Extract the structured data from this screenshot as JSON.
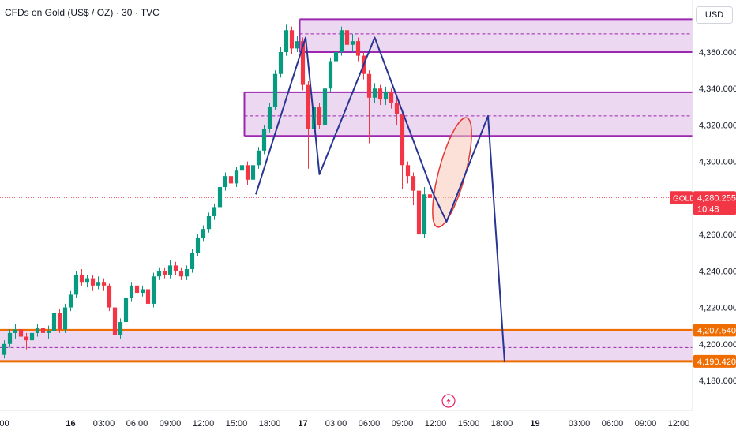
{
  "header": {
    "title": "CFDs on Gold (US$ / OZ) · 30 · TVC",
    "currency": "USD"
  },
  "colors": {
    "up": "#089981",
    "down": "#f23645",
    "zone_fill": "#e1bee7",
    "zone_border": "#9c27b0",
    "support_line": "#ef6c00",
    "pattern_line": "#283593",
    "price_line": "#f23645",
    "ellipse_fill": "#f8c8b8",
    "ellipse_stroke": "#e53935"
  },
  "chart_data": {
    "type": "candlestick",
    "symbol": "GOLD",
    "price_axis": {
      "min": 4170,
      "max": 4380,
      "ticks": [
        "4,180.000",
        "4,200.000",
        "4,220.000",
        "4,240.000",
        "4,260.000",
        "4,280.000",
        "4,300.000",
        "4,320.000",
        "4,340.000",
        "4,360.000"
      ],
      "tick_values": [
        4180,
        4200,
        4220,
        4240,
        4260,
        4280,
        4300,
        4320,
        4340,
        4360
      ]
    },
    "time_axis": {
      "labels": [
        "00",
        "16",
        "03:00",
        "06:00",
        "09:00",
        "12:00",
        "15:00",
        "18:00",
        "17",
        "03:00",
        "06:00",
        "09:00",
        "12:00",
        "15:00",
        "18:00",
        "19",
        "03:00",
        "06:00",
        "09:00",
        "12:00"
      ],
      "label_bars": [
        0,
        12,
        18,
        24,
        30,
        36,
        42,
        48,
        54,
        60,
        66,
        72,
        78,
        84,
        90,
        96,
        104,
        110,
        116,
        122
      ],
      "day_labels": [
        "16",
        "17",
        "19"
      ]
    },
    "last_price": {
      "label": "GOLD",
      "value": "4,280.255",
      "countdown": "10:48",
      "price": 4280.255
    },
    "zones": [
      {
        "name": "upper-resistance",
        "top": 4378,
        "bottom": 4360,
        "mid": 4370,
        "from_bar": 54
      },
      {
        "name": "middle-resistance",
        "top": 4338,
        "bottom": 4314,
        "mid": 4325,
        "from_bar": 44
      },
      {
        "name": "support",
        "top": 4207.54,
        "bottom": 4190.42,
        "mid": 4198,
        "from_bar": 0
      }
    ],
    "support_labels": [
      {
        "value": "4,207.540",
        "price": 4207.54
      },
      {
        "value": "4,190.420",
        "price": 4190.42
      }
    ],
    "pattern_points": [
      {
        "bar": 45.5,
        "price": 4282
      },
      {
        "bar": 54.5,
        "price": 4368
      },
      {
        "bar": 57,
        "price": 4293
      },
      {
        "bar": 67,
        "price": 4368
      },
      {
        "bar": 77.5,
        "price": 4283
      },
      {
        "bar": 80,
        "price": 4267
      },
      {
        "bar": 87.5,
        "price": 4325
      },
      {
        "bar": 90.5,
        "price": 4190
      }
    ],
    "highlight_ellipse": {
      "bar": 81,
      "price": 4294,
      "bars_radius": 2.4,
      "price_radius": 31,
      "rotation": 15
    },
    "candles": [
      [
        4194,
        4200,
        4192,
        4202
      ],
      [
        4200,
        4206,
        4198,
        4208
      ],
      [
        4206,
        4208,
        4203,
        4211
      ],
      [
        4208,
        4204,
        4201,
        4210
      ],
      [
        4204,
        4202,
        4197,
        4206
      ],
      [
        4202,
        4206,
        4200,
        4208
      ],
      [
        4206,
        4209,
        4204,
        4211
      ],
      [
        4209,
        4206,
        4203,
        4211
      ],
      [
        4206,
        4207,
        4203,
        4210
      ],
      [
        4207,
        4217,
        4205,
        4219
      ],
      [
        4217,
        4208,
        4206,
        4219
      ],
      [
        4208,
        4220,
        4206,
        4222
      ],
      [
        4220,
        4227,
        4218,
        4229
      ],
      [
        4227,
        4238,
        4225,
        4240
      ],
      [
        4238,
        4234,
        4232,
        4241
      ],
      [
        4234,
        4236,
        4231,
        4238
      ],
      [
        4236,
        4232,
        4229,
        4238
      ],
      [
        4232,
        4234,
        4230,
        4237
      ],
      [
        4234,
        4232,
        4229,
        4236
      ],
      [
        4232,
        4220,
        4218,
        4233
      ],
      [
        4220,
        4205,
        4203,
        4222
      ],
      [
        4205,
        4212,
        4203,
        4214
      ],
      [
        4212,
        4225,
        4210,
        4227
      ],
      [
        4225,
        4232,
        4223,
        4234
      ],
      [
        4232,
        4228,
        4226,
        4234
      ],
      [
        4228,
        4230,
        4226,
        4232
      ],
      [
        4230,
        4222,
        4220,
        4232
      ],
      [
        4222,
        4237,
        4220,
        4239
      ],
      [
        4237,
        4240,
        4235,
        4242
      ],
      [
        4240,
        4238,
        4236,
        4242
      ],
      [
        4238,
        4243,
        4236,
        4246
      ],
      [
        4243,
        4240,
        4238,
        4245
      ],
      [
        4240,
        4237,
        4235,
        4242
      ],
      [
        4237,
        4241,
        4235,
        4243
      ],
      [
        4241,
        4250,
        4239,
        4252
      ],
      [
        4250,
        4258,
        4248,
        4260
      ],
      [
        4258,
        4263,
        4256,
        4265
      ],
      [
        4263,
        4270,
        4261,
        4272
      ],
      [
        4270,
        4275,
        4268,
        4277
      ],
      [
        4275,
        4286,
        4273,
        4288
      ],
      [
        4286,
        4292,
        4284,
        4294
      ],
      [
        4292,
        4288,
        4285,
        4294
      ],
      [
        4288,
        4295,
        4286,
        4297
      ],
      [
        4295,
        4298,
        4293,
        4300
      ],
      [
        4298,
        4290,
        4287,
        4300
      ],
      [
        4290,
        4298,
        4288,
        4300
      ],
      [
        4298,
        4306,
        4296,
        4308
      ],
      [
        4306,
        4318,
        4304,
        4320
      ],
      [
        4318,
        4330,
        4316,
        4332
      ],
      [
        4330,
        4348,
        4328,
        4350
      ],
      [
        4348,
        4360,
        4346,
        4363
      ],
      [
        4360,
        4372,
        4358,
        4375
      ],
      [
        4372,
        4362,
        4359,
        4374
      ],
      [
        4362,
        4366,
        4360,
        4369
      ],
      [
        4366,
        4342,
        4339,
        4368
      ],
      [
        4342,
        4318,
        4296,
        4344
      ],
      [
        4318,
        4330,
        4316,
        4333
      ],
      [
        4330,
        4320,
        4318,
        4332
      ],
      [
        4320,
        4340,
        4318,
        4343
      ],
      [
        4340,
        4355,
        4338,
        4357
      ],
      [
        4355,
        4360,
        4353,
        4363
      ],
      [
        4360,
        4372,
        4358,
        4374
      ],
      [
        4372,
        4364,
        4362,
        4374
      ],
      [
        4364,
        4366,
        4360,
        4370
      ],
      [
        4366,
        4358,
        4355,
        4368
      ],
      [
        4358,
        4348,
        4345,
        4360
      ],
      [
        4348,
        4335,
        4310,
        4350
      ],
      [
        4335,
        4340,
        4332,
        4343
      ],
      [
        4340,
        4334,
        4331,
        4342
      ],
      [
        4334,
        4338,
        4331,
        4341
      ],
      [
        4338,
        4332,
        4329,
        4340
      ],
      [
        4332,
        4326,
        4320,
        4334
      ],
      [
        4326,
        4298,
        4285,
        4328
      ],
      [
        4298,
        4292,
        4288,
        4300
      ],
      [
        4292,
        4284,
        4276,
        4294
      ],
      [
        4284,
        4260,
        4257,
        4286
      ],
      [
        4260,
        4282,
        4258,
        4286
      ],
      [
        4282,
        4280,
        4277,
        4284
      ]
    ]
  }
}
